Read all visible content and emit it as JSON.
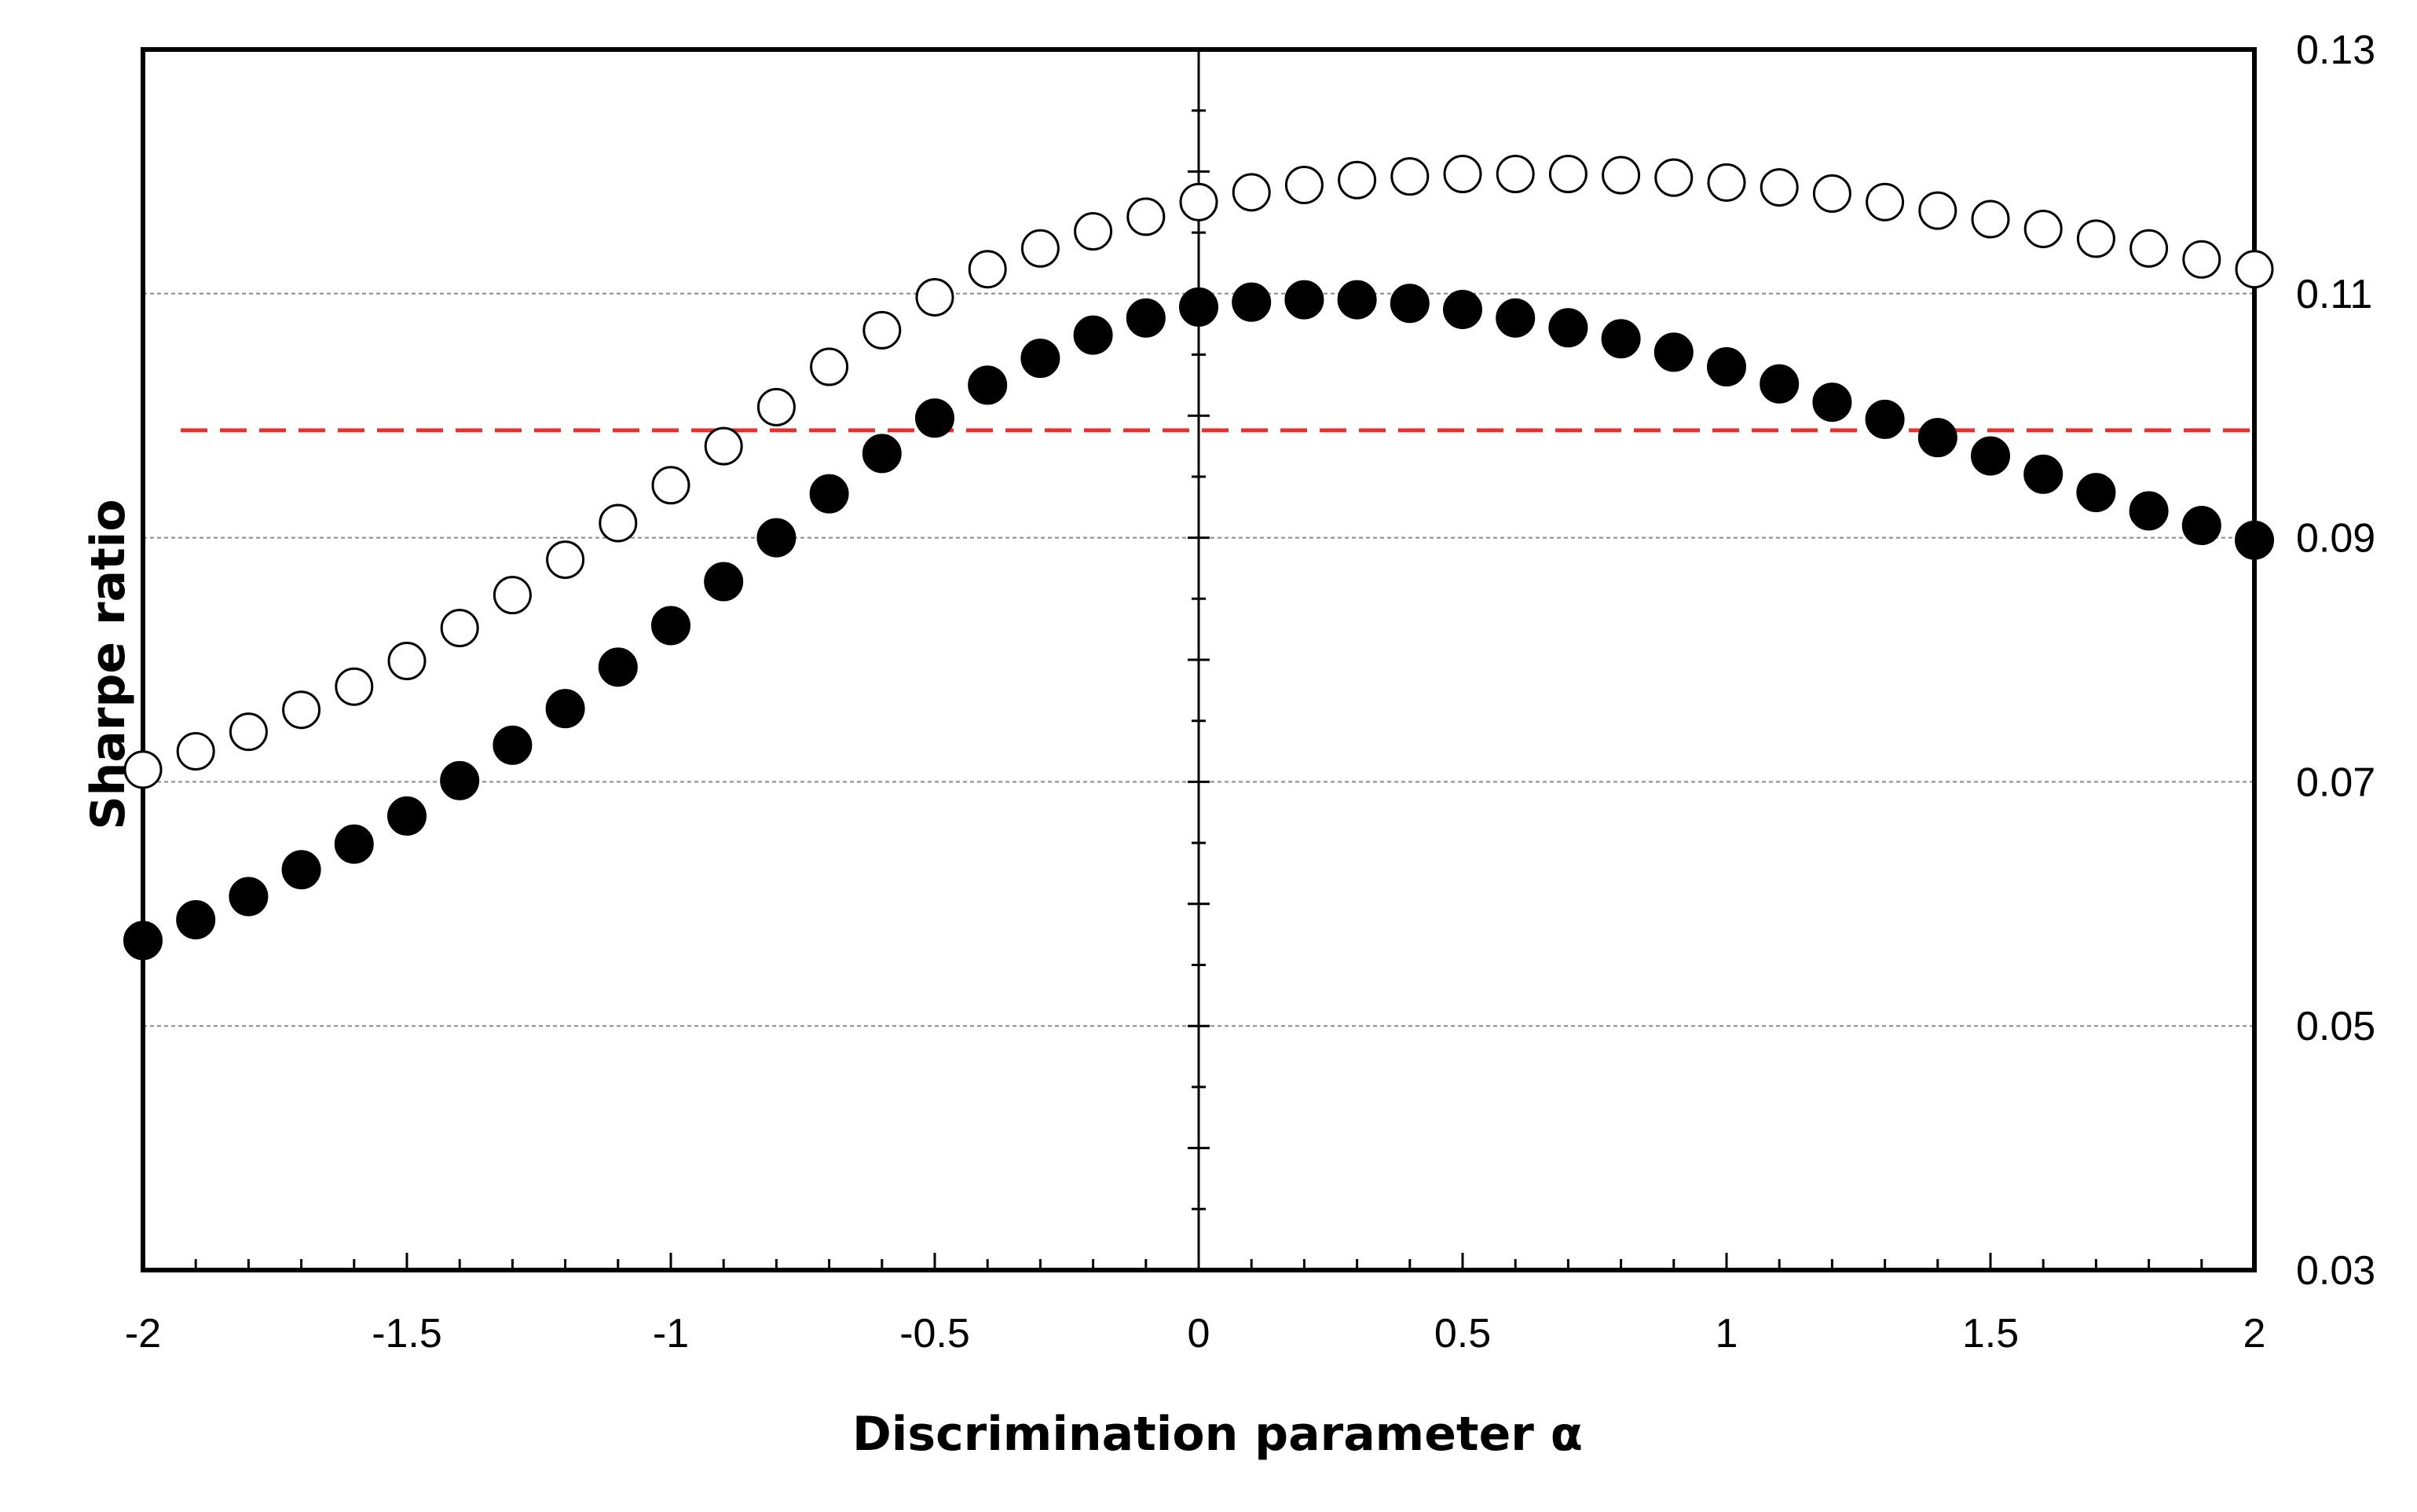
{
  "chart_data": {
    "type": "scatter",
    "title": "",
    "xlabel": "Discrimination parameter α",
    "ylabel": "Sharpe ratio",
    "xlim": [
      -2,
      2
    ],
    "ylim": [
      0.03,
      0.13
    ],
    "x_ticks": [
      -2,
      -1.5,
      -1,
      -0.5,
      0,
      0.5,
      1,
      1.5,
      2
    ],
    "x_tick_labels": [
      "-2",
      "-1.5",
      "-1",
      "-0.5",
      "0",
      "0.5",
      "1",
      "1.5",
      "2"
    ],
    "y_ticks": [
      0.03,
      0.05,
      0.07,
      0.09,
      0.11,
      0.13
    ],
    "y_tick_labels": [
      "0.03",
      "0.05",
      "0.07",
      "0.09",
      "0.11",
      "0.13"
    ],
    "gridlines_y": [
      0.05,
      0.07,
      0.09,
      0.11
    ],
    "x": [
      -2,
      -1.9,
      -1.8,
      -1.7,
      -1.6,
      -1.5,
      -1.4,
      -1.3,
      -1.2,
      -1.1,
      -1,
      -0.9,
      -0.8,
      -0.7,
      -0.6,
      -0.5,
      -0.4,
      -0.3,
      -0.2,
      -0.1,
      0,
      0.1,
      0.2,
      0.3,
      0.4,
      0.5,
      0.6,
      0.7,
      0.8,
      0.9,
      1,
      1.1,
      1.2,
      1.3,
      1.4,
      1.5,
      1.6,
      1.7,
      1.8,
      1.9,
      2
    ],
    "series": [
      {
        "name": "open circles",
        "marker": "open",
        "values": [
          0.071,
          0.0725,
          0.0741,
          0.0759,
          0.0778,
          0.0799,
          0.0826,
          0.0853,
          0.0882,
          0.0912,
          0.0943,
          0.0975,
          0.1007,
          0.104,
          0.107,
          0.1097,
          0.112,
          0.1137,
          0.1151,
          0.1163,
          0.1175,
          0.1183,
          0.1189,
          0.1193,
          0.1196,
          0.1198,
          0.1198,
          0.1198,
          0.1197,
          0.1195,
          0.1191,
          0.1187,
          0.1182,
          0.1175,
          0.1168,
          0.1161,
          0.1153,
          0.1145,
          0.1137,
          0.1128,
          0.112
        ]
      },
      {
        "name": "filled circles",
        "marker": "filled",
        "values": [
          0.057,
          0.0587,
          0.0606,
          0.0628,
          0.0649,
          0.0672,
          0.0701,
          0.073,
          0.076,
          0.0794,
          0.0828,
          0.0864,
          0.09,
          0.0936,
          0.0969,
          0.0998,
          0.1025,
          0.1047,
          0.1066,
          0.108,
          0.1089,
          0.1093,
          0.1095,
          0.1095,
          0.1092,
          0.1087,
          0.108,
          0.1072,
          0.1063,
          0.1052,
          0.104,
          0.1026,
          0.1011,
          0.0997,
          0.0982,
          0.0967,
          0.0952,
          0.0937,
          0.0922,
          0.091,
          0.0898
        ]
      }
    ],
    "reference_line": {
      "y": 0.0988,
      "style": "dashed",
      "color": "#e53030"
    }
  }
}
